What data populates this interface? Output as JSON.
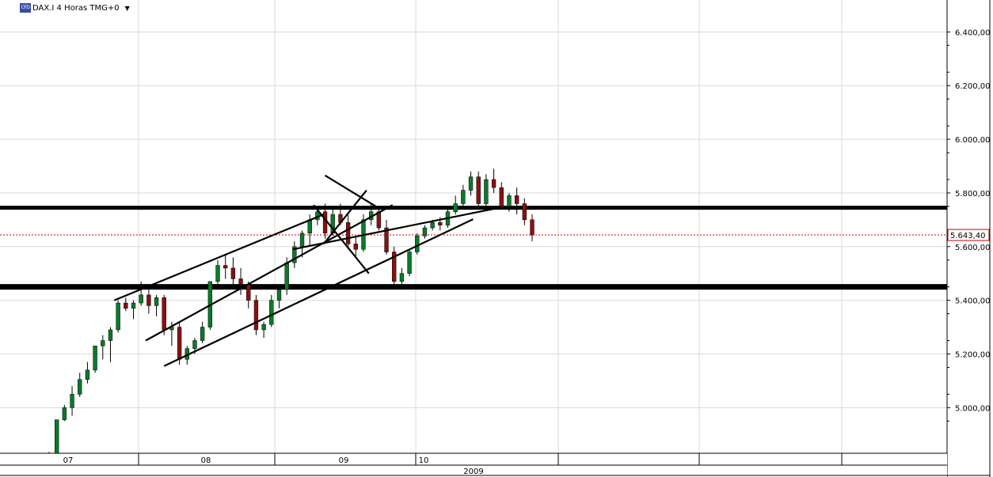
{
  "header": {
    "symbol_icon": "CFD",
    "title": "DAX.I 4 Horas TMG+0",
    "dropdown_icon": "caret-down-icon"
  },
  "chart_data": {
    "type": "candlestick",
    "y_axis": {
      "ticks": [
        "6.400,00",
        "6.200,00",
        "6.000,00",
        "5.800,00",
        "5.600,00",
        "5.400,00",
        "5.200,00",
        "5.000,00"
      ],
      "tick_values": [
        6400,
        6200,
        6000,
        5800,
        5600,
        5400,
        5200,
        5000
      ],
      "ylim": [
        4830,
        6460
      ]
    },
    "x_axis": {
      "tick_labels": [
        "07",
        "08",
        "09",
        "10"
      ],
      "year_label": "2009",
      "sessions": 64
    },
    "current_price": {
      "value": 5643.4,
      "label": "5.643,40",
      "color": "#cc0000"
    },
    "horizontal_levels": [
      5745,
      5450
    ],
    "trendlines": [
      {
        "from": [
          8.5,
          5400
        ],
        "to": [
          35.8,
          5720
        ]
      },
      {
        "from": [
          12.6,
          5250
        ],
        "to": [
          44.8,
          5755
        ]
      },
      {
        "from": [
          15.0,
          5155
        ],
        "to": [
          55.3,
          5702
        ]
      },
      {
        "from": [
          31.8,
          5590
        ],
        "to": [
          59.6,
          5750
        ]
      },
      {
        "from": [
          36.0,
          5865
        ],
        "to": [
          42.9,
          5745
        ]
      },
      {
        "from": [
          34.5,
          5755
        ],
        "to": [
          41.7,
          5500
        ]
      },
      {
        "from": [
          35.8,
          5610
        ],
        "to": [
          41.4,
          5810
        ]
      }
    ],
    "series": [
      {
        "values": [
          [
            4830,
            4835,
            4825,
            4830
          ],
          [
            4830,
            4900,
            4825,
            4955
          ],
          [
            4955,
            5010,
            4950,
            5000
          ],
          [
            5000,
            5080,
            4970,
            5050
          ],
          [
            5050,
            5130,
            5040,
            5105
          ],
          [
            5105,
            5170,
            5090,
            5140
          ],
          [
            5140,
            5230,
            5130,
            5230
          ],
          [
            5230,
            5270,
            5180,
            5250
          ],
          [
            5250,
            5300,
            5170,
            5290
          ],
          [
            5290,
            5400,
            5280,
            5390
          ],
          [
            5390,
            5410,
            5360,
            5370
          ],
          [
            5370,
            5400,
            5330,
            5390
          ],
          [
            5390,
            5470,
            5380,
            5420
          ],
          [
            5420,
            5440,
            5350,
            5380
          ],
          [
            5380,
            5420,
            5340,
            5410
          ],
          [
            5410,
            5420,
            5270,
            5290
          ],
          [
            5290,
            5320,
            5230,
            5300
          ],
          [
            5300,
            5320,
            5160,
            5180
          ],
          [
            5180,
            5230,
            5160,
            5220
          ],
          [
            5220,
            5260,
            5200,
            5250
          ],
          [
            5250,
            5320,
            5240,
            5300
          ],
          [
            5300,
            5460,
            5290,
            5470
          ],
          [
            5470,
            5550,
            5440,
            5530
          ],
          [
            5530,
            5570,
            5480,
            5520
          ],
          [
            5520,
            5560,
            5450,
            5480
          ],
          [
            5480,
            5520,
            5420,
            5460
          ],
          [
            5460,
            5470,
            5370,
            5400
          ],
          [
            5400,
            5420,
            5270,
            5290
          ],
          [
            5290,
            5320,
            5260,
            5310
          ],
          [
            5310,
            5420,
            5300,
            5400
          ],
          [
            5400,
            5460,
            5370,
            5440
          ],
          [
            5440,
            5560,
            5420,
            5540
          ],
          [
            5540,
            5620,
            5520,
            5600
          ],
          [
            5600,
            5660,
            5560,
            5650
          ],
          [
            5650,
            5720,
            5600,
            5700
          ],
          [
            5700,
            5750,
            5680,
            5730
          ],
          [
            5730,
            5760,
            5630,
            5650
          ],
          [
            5650,
            5740,
            5640,
            5720
          ],
          [
            5720,
            5760,
            5680,
            5690
          ],
          [
            5690,
            5720,
            5590,
            5610
          ],
          [
            5610,
            5640,
            5560,
            5590
          ],
          [
            5590,
            5720,
            5580,
            5700
          ],
          [
            5700,
            5760,
            5680,
            5730
          ],
          [
            5730,
            5750,
            5660,
            5670
          ],
          [
            5670,
            5700,
            5570,
            5580
          ],
          [
            5580,
            5600,
            5460,
            5470
          ],
          [
            5470,
            5520,
            5450,
            5500
          ],
          [
            5500,
            5590,
            5490,
            5580
          ],
          [
            5580,
            5650,
            5570,
            5640
          ],
          [
            5640,
            5680,
            5630,
            5670
          ],
          [
            5670,
            5700,
            5660,
            5690
          ],
          [
            5690,
            5710,
            5660,
            5680
          ],
          [
            5680,
            5740,
            5670,
            5730
          ],
          [
            5730,
            5790,
            5720,
            5760
          ],
          [
            5760,
            5830,
            5740,
            5810
          ],
          [
            5810,
            5880,
            5790,
            5860
          ],
          [
            5860,
            5880,
            5750,
            5760
          ],
          [
            5760,
            5870,
            5740,
            5850
          ],
          [
            5850,
            5890,
            5800,
            5820
          ],
          [
            5820,
            5840,
            5740,
            5750
          ],
          [
            5750,
            5800,
            5730,
            5790
          ],
          [
            5790,
            5820,
            5720,
            5760
          ],
          [
            5760,
            5780,
            5680,
            5700
          ],
          [
            5700,
            5720,
            5620,
            5643
          ]
        ]
      }
    ]
  }
}
